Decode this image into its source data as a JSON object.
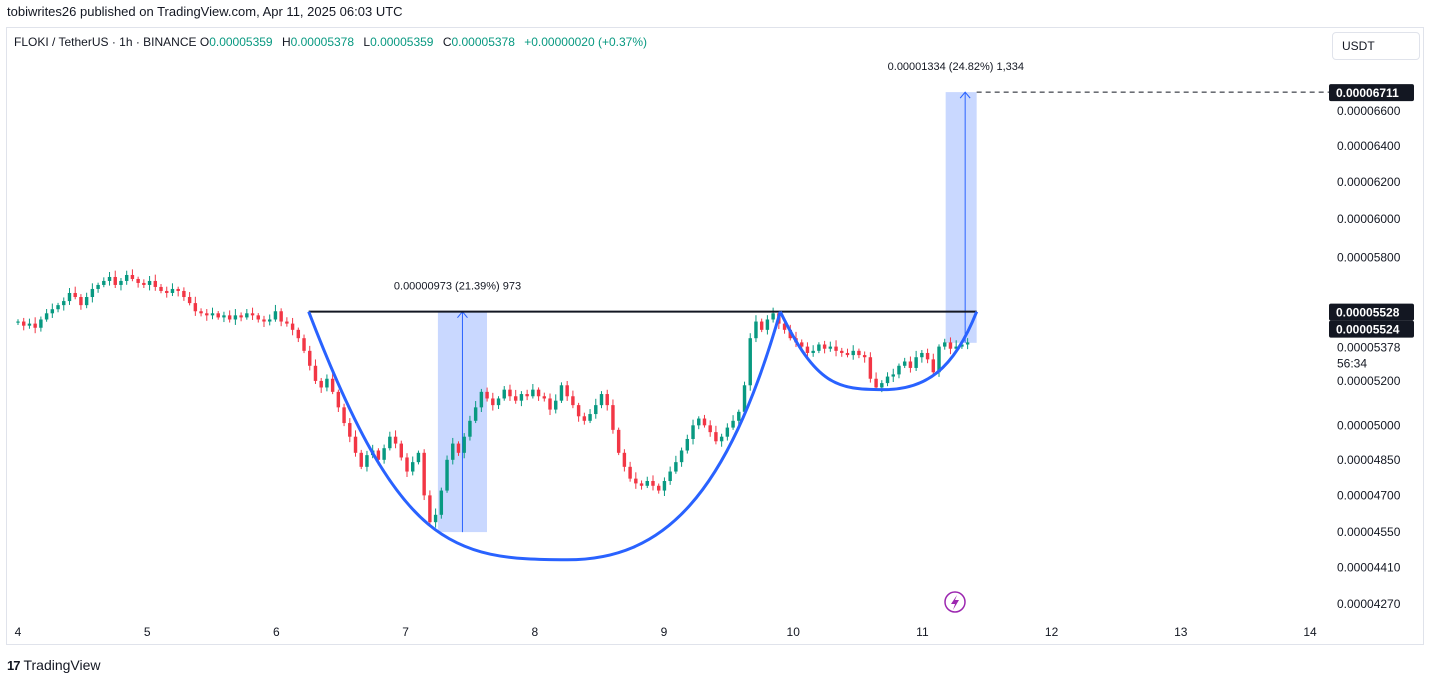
{
  "header": {
    "published": "tobiwrites26 published on TradingView.com, Apr 11, 2025 06:03 UTC",
    "symbol": "FLOKI / TetherUS · 1h · BINANCE",
    "ohlc": [
      {
        "key": "O",
        "value": "0.00005359"
      },
      {
        "key": "H",
        "value": "0.00005378"
      },
      {
        "key": "L",
        "value": "0.00005359"
      },
      {
        "key": "C",
        "value": "0.00005378"
      }
    ],
    "change": "+0.00000020 (+0.37%)",
    "currency_button": "USDT"
  },
  "brand": {
    "logo_glyph": "17",
    "name": "TradingView"
  },
  "colors": {
    "up": "#089981",
    "down": "#f23645",
    "pattern": "#2962ff",
    "measure_fill": "#2962ff",
    "resistance": "#131722"
  },
  "chart_data": {
    "type": "candlestick",
    "title": "",
    "xlabel": "",
    "ylabel": "",
    "x_ticks": [
      "4",
      "5",
      "6",
      "7",
      "8",
      "9",
      "10",
      "11",
      "12",
      "13",
      "14"
    ],
    "y_ticks": [
      "0.00006600",
      "0.00006400",
      "0.00006200",
      "0.00006000",
      "0.00005800",
      "0.00005200",
      "0.00005000",
      "0.00004850",
      "0.00004700",
      "0.00004550",
      "0.00004410",
      "0.00004270"
    ],
    "y_log_scale": true,
    "price_tags": [
      {
        "label": "0.00006711",
        "value": 6.711e-05,
        "style": "black"
      },
      {
        "label": "0.00005528",
        "value": 5.528e-05,
        "style": "black"
      },
      {
        "label": "0.00005524",
        "value": 5.524e-05,
        "style": "black"
      },
      {
        "label": "0.00005378",
        "value": 5.378e-05,
        "style": "plain"
      }
    ],
    "countdown": "56:34",
    "resistance": {
      "value": 5.528e-05,
      "from_day": 6.25,
      "to_day": 11.42
    },
    "measures": [
      {
        "label": "0.00000973 (21.39%) 973",
        "from_day": 7.25,
        "to_day": 7.63,
        "low": 4.55e-05,
        "high": 5.528e-05
      },
      {
        "label": "0.00001334 (24.82%) 1,334",
        "from_day": 11.18,
        "to_day": 11.42,
        "low": 5.378e-05,
        "high": 6.711e-05
      }
    ],
    "cup": {
      "left_day": 6.25,
      "right_day": 9.9,
      "bottom_day": 8.25,
      "rim": 5.528e-05,
      "bottom": 4.44e-05
    },
    "handle": {
      "left_day": 9.9,
      "right_day": 11.42,
      "bottom_day": 10.7,
      "rim": 5.528e-05,
      "bottom": 5.16e-05
    },
    "candles_close": [
      5.48e-05,
      5.46e-05,
      5.47e-05,
      5.45e-05,
      5.49e-05,
      5.52e-05,
      5.54e-05,
      5.56e-05,
      5.58e-05,
      5.62e-05,
      5.6e-05,
      5.56e-05,
      5.6e-05,
      5.64e-05,
      5.66e-05,
      5.68e-05,
      5.7e-05,
      5.66e-05,
      5.68e-05,
      5.71e-05,
      5.69e-05,
      5.67e-05,
      5.66e-05,
      5.68e-05,
      5.65e-05,
      5.63e-05,
      5.62e-05,
      5.64e-05,
      5.63e-05,
      5.6e-05,
      5.57e-05,
      5.53e-05,
      5.52e-05,
      5.51e-05,
      5.52e-05,
      5.5e-05,
      5.51e-05,
      5.49e-05,
      5.51e-05,
      5.5e-05,
      5.52e-05,
      5.51e-05,
      5.49e-05,
      5.48e-05,
      5.49e-05,
      5.53e-05,
      5.48e-05,
      5.47e-05,
      5.44e-05,
      5.4e-05,
      5.34e-05,
      5.27e-05,
      5.2e-05,
      5.17e-05,
      5.21e-05,
      5.15e-05,
      5.08e-05,
      5.01e-05,
      4.95e-05,
      4.88e-05,
      4.82e-05,
      4.87e-05,
      4.89e-05,
      4.85e-05,
      4.9e-05,
      4.95e-05,
      4.92e-05,
      4.86e-05,
      4.8e-05,
      4.84e-05,
      4.88e-05,
      4.7e-05,
      4.59e-05,
      4.62e-05,
      4.72e-05,
      4.85e-05,
      4.92e-05,
      4.88e-05,
      4.95e-05,
      5.02e-05,
      5.08e-05,
      5.15e-05,
      5.12e-05,
      5.09e-05,
      5.12e-05,
      5.16e-05,
      5.13e-05,
      5.11e-05,
      5.14e-05,
      5.13e-05,
      5.16e-05,
      5.13e-05,
      5.12e-05,
      5.07e-05,
      5.11e-05,
      5.18e-05,
      5.13e-05,
      5.09e-05,
      5.04e-05,
      5.02e-05,
      5.05e-05,
      5.09e-05,
      5.14e-05,
      5.09e-05,
      4.98e-05,
      4.88e-05,
      4.82e-05,
      4.77e-05,
      4.75e-05,
      4.74e-05,
      4.76e-05,
      4.74e-05,
      4.72e-05,
      4.76e-05,
      4.8e-05,
      4.84e-05,
      4.89e-05,
      4.94e-05,
      5e-05,
      5.03e-05,
      5e-05,
      4.97e-05,
      4.93e-05,
      4.95e-05,
      4.99e-05,
      5.02e-05,
      5.06e-05,
      5.18e-05,
      5.4e-05,
      5.48e-05,
      5.44e-05,
      5.49e-05,
      5.52e-05,
      5.47e-05,
      5.44e-05,
      5.4e-05,
      5.38e-05,
      5.36e-05,
      5.33e-05,
      5.34e-05,
      5.37e-05,
      5.35e-05,
      5.36e-05,
      5.34e-05,
      5.33e-05,
      5.32e-05,
      5.34e-05,
      5.32e-05,
      5.31e-05,
      5.21e-05,
      5.17e-05,
      5.19e-05,
      5.22e-05,
      5.23e-05,
      5.27e-05,
      5.29e-05,
      5.26e-05,
      5.31e-05,
      5.33e-05,
      5.3e-05,
      5.24e-05,
      5.36e-05,
      5.38e-05,
      5.35e-05,
      5.36e-05,
      5.37e-05,
      5.38e-05
    ]
  }
}
